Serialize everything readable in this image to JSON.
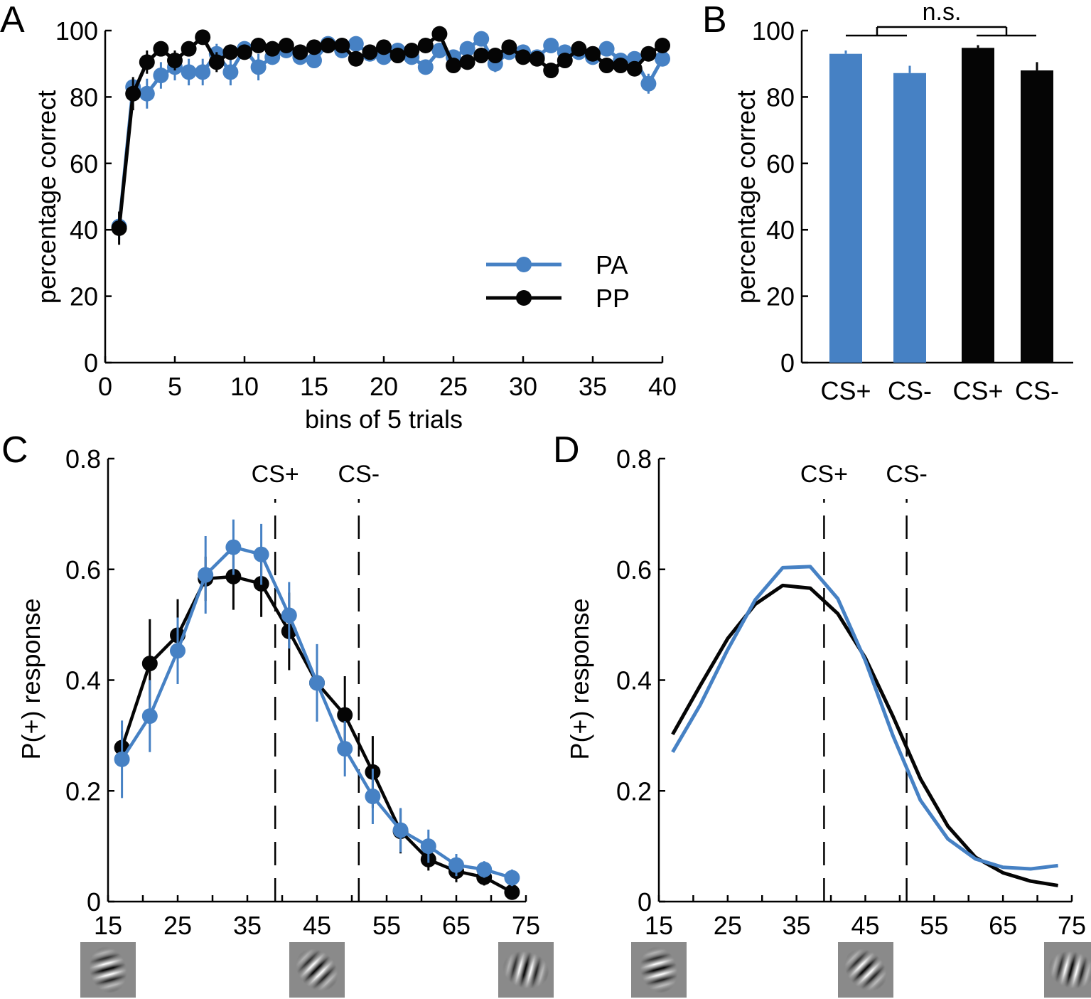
{
  "colors": {
    "PA": "#4681c4",
    "PP": "#050505"
  },
  "chart_data": [
    {
      "panel": "A",
      "type": "line",
      "title": "",
      "xlabel": "bins of 5 trials",
      "ylabel": "percentage correct",
      "xlim": [
        0,
        40
      ],
      "ylim": [
        0,
        100
      ],
      "xticks": [
        0,
        5,
        10,
        15,
        20,
        25,
        30,
        35,
        40
      ],
      "yticks": [
        0,
        20,
        40,
        60,
        80,
        100
      ],
      "legend": {
        "position": "bottom-right",
        "entries": [
          "PA",
          "PP"
        ]
      },
      "x": [
        1,
        2,
        3,
        4,
        5,
        6,
        7,
        8,
        9,
        10,
        11,
        12,
        13,
        14,
        15,
        16,
        17,
        18,
        19,
        20,
        21,
        22,
        23,
        24,
        25,
        26,
        27,
        28,
        29,
        30,
        31,
        32,
        33,
        34,
        35,
        36,
        37,
        38,
        39,
        40
      ],
      "series": [
        {
          "name": "PA",
          "color": "#4681c4",
          "values": [
            41,
            83,
            81,
            86.5,
            89,
            87.5,
            87.5,
            93,
            87.5,
            94.5,
            89,
            92,
            94,
            92,
            91,
            96,
            94,
            96,
            93,
            92,
            94,
            92,
            89,
            94,
            92,
            94.5,
            97.5,
            90,
            93.5,
            93.5,
            92,
            95.5,
            93.5,
            93.5,
            92,
            94.5,
            91,
            91.5,
            84,
            91.5
          ],
          "errors": [
            4,
            2,
            4.5,
            4,
            4,
            4,
            4,
            3,
            4,
            2,
            4,
            2,
            2,
            2,
            2,
            1.5,
            1.5,
            1.5,
            2,
            2,
            2,
            2,
            1.5,
            2,
            2,
            2,
            1.5,
            2.5,
            2,
            2,
            2,
            2,
            2,
            2,
            2,
            2,
            2,
            2,
            3,
            2
          ]
        },
        {
          "name": "PP",
          "color": "#050505",
          "values": [
            40.5,
            81,
            90.5,
            94.5,
            91,
            94.5,
            98,
            90.5,
            93.5,
            93.5,
            95.5,
            94.5,
            95.5,
            93.5,
            95,
            95.5,
            95.5,
            91.5,
            93.5,
            95,
            92.5,
            94,
            95.5,
            99,
            89.5,
            90.5,
            92.5,
            92.5,
            95,
            92,
            91.5,
            88,
            91,
            94.5,
            93,
            89.5,
            89.5,
            88.5,
            93,
            95.5
          ],
          "errors": [
            5,
            5,
            3.5,
            2,
            3,
            2,
            1.5,
            3,
            2,
            2,
            1.5,
            2,
            1.5,
            2,
            1.5,
            1.5,
            1.5,
            2,
            2,
            1.5,
            2,
            2,
            1.5,
            1,
            2,
            2,
            2,
            2,
            1.5,
            2,
            2,
            2,
            2,
            1.5,
            1.5,
            2,
            2,
            2,
            2,
            1.5
          ]
        }
      ]
    },
    {
      "panel": "B",
      "type": "bar",
      "title": "",
      "xlabel": "",
      "ylabel": "percentage correct",
      "ylim": [
        0,
        100
      ],
      "yticks": [
        0,
        20,
        40,
        60,
        80,
        100
      ],
      "categories": [
        "CS+",
        "CS-",
        "CS+",
        "CS-"
      ],
      "values": [
        93,
        87.2,
        94.8,
        88
      ],
      "errors": [
        1,
        2.2,
        0.8,
        2.5
      ],
      "bar_colors": [
        "#4681c4",
        "#4681c4",
        "#050505",
        "#050505"
      ],
      "annotation": "n.s."
    },
    {
      "panel": "C",
      "type": "line",
      "title": "",
      "xlabel": "",
      "ylabel": "P(+) response",
      "xlim": [
        15,
        75
      ],
      "ylim": [
        0,
        0.8
      ],
      "xticks": [
        15,
        25,
        35,
        45,
        55,
        65,
        75
      ],
      "yticks": [
        0,
        0.2,
        0.4,
        0.6,
        0.8
      ],
      "ytick_labels": [
        "0",
        "0.2",
        "0.4",
        "0.6",
        "0.8"
      ],
      "vlines": [
        {
          "x": 39,
          "label": "CS+"
        },
        {
          "x": 51,
          "label": "CS-"
        }
      ],
      "x": [
        17,
        21,
        25,
        29,
        33,
        37,
        41,
        45,
        49,
        53,
        57,
        61,
        65,
        69,
        73
      ],
      "series": [
        {
          "name": "PA",
          "color": "#4681c4",
          "values": [
            0.257,
            0.335,
            0.453,
            0.59,
            0.64,
            0.627,
            0.517,
            0.395,
            0.276,
            0.19,
            0.129,
            0.1,
            0.066,
            0.058,
            0.043
          ],
          "errors": [
            0.07,
            0.065,
            0.06,
            0.07,
            0.05,
            0.055,
            0.06,
            0.07,
            0.05,
            0.05,
            0.04,
            0.03,
            0.02,
            0.015,
            0.015
          ]
        },
        {
          "name": "PP",
          "color": "#050505",
          "values": [
            0.278,
            0.43,
            0.481,
            0.583,
            0.587,
            0.574,
            0.488,
            0.395,
            0.337,
            0.234,
            0.127,
            0.076,
            0.055,
            0.044,
            0.017
          ],
          "errors": [
            0.03,
            0.08,
            0.065,
            0.04,
            0.06,
            0.06,
            0.07,
            0.06,
            0.07,
            0.065,
            0.04,
            0.02,
            0.02,
            0.015,
            0.01
          ]
        }
      ],
      "stimulus_images": [
        "gabor-15",
        "gabor-45",
        "gabor-75"
      ]
    },
    {
      "panel": "D",
      "type": "line",
      "title": "",
      "xlabel": "",
      "ylabel": "P(+) response",
      "xlim": [
        15,
        75
      ],
      "ylim": [
        0,
        0.8
      ],
      "xticks": [
        15,
        25,
        35,
        45,
        55,
        65,
        75
      ],
      "yticks": [
        0,
        0.2,
        0.4,
        0.6,
        0.8
      ],
      "ytick_labels": [
        "0",
        "0.2",
        "0.4",
        "0.6",
        "0.8"
      ],
      "vlines": [
        {
          "x": 39,
          "label": "CS+"
        },
        {
          "x": 51,
          "label": "CS-"
        }
      ],
      "x": [
        17,
        21,
        25,
        29,
        33,
        37,
        41,
        45,
        49,
        53,
        57,
        61,
        65,
        69,
        73
      ],
      "series": [
        {
          "name": "PA",
          "color": "#4681c4",
          "values": [
            0.27,
            0.355,
            0.455,
            0.545,
            0.603,
            0.605,
            0.547,
            0.435,
            0.3,
            0.183,
            0.113,
            0.077,
            0.062,
            0.059,
            0.065
          ]
        },
        {
          "name": "PP",
          "color": "#050505",
          "values": [
            0.302,
            0.39,
            0.475,
            0.537,
            0.571,
            0.566,
            0.52,
            0.44,
            0.335,
            0.222,
            0.136,
            0.08,
            0.052,
            0.037,
            0.029
          ]
        }
      ],
      "stimulus_images": [
        "gabor-15",
        "gabor-45",
        "gabor-75"
      ]
    }
  ],
  "panel_labels": [
    "A",
    "B",
    "C",
    "D"
  ]
}
